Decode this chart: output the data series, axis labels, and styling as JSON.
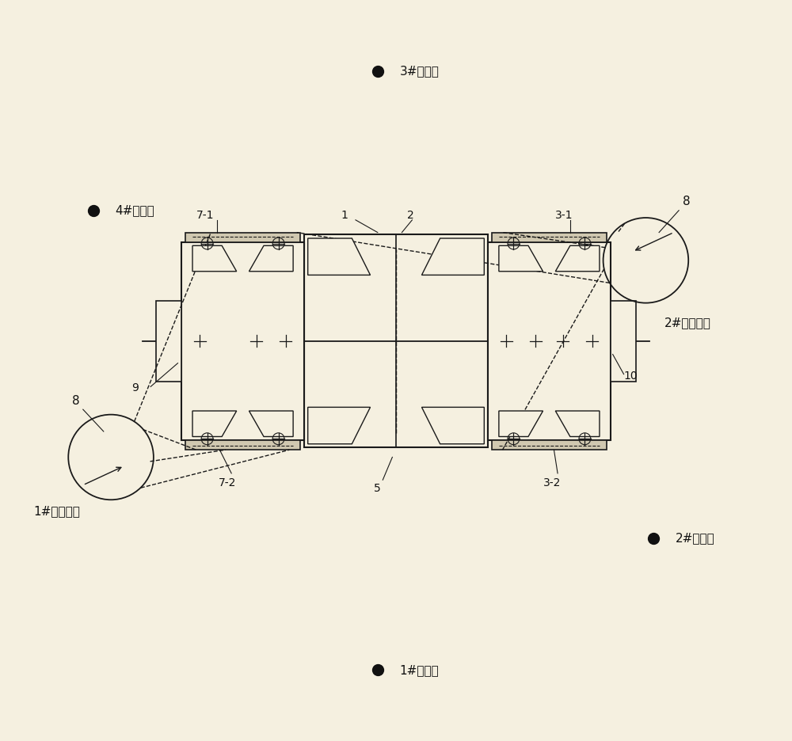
{
  "bg_color": "#f5f0e0",
  "line_color": "#1a1a1a",
  "fig_width": 10.0,
  "fig_height": 9.36,
  "labels": {
    "station3": "3#转站点",
    "station4": "4#转站点",
    "station1": "1#转站点",
    "station2": "2#转站点",
    "detect1": "1#检测工位",
    "detect2": "2#检测工位",
    "num1": "1",
    "num2": "2",
    "num3_1": "3-1",
    "num3_2": "3-2",
    "num5": "5",
    "num7_1": "7-1",
    "num7_2": "7-2",
    "num8": "8",
    "num9": "9",
    "num10": "10"
  }
}
